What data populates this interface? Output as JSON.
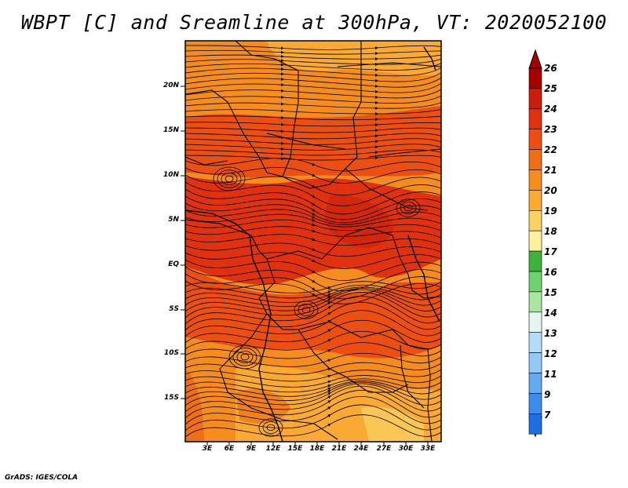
{
  "title": "WBPT [C] and Sreamline at 300hPa, VT: 2020052100",
  "map": {
    "lat_labels": [
      "20N",
      "15N",
      "10N",
      "5N",
      "EQ",
      "5S",
      "10S",
      "15S"
    ],
    "lon_labels": [
      "3E",
      "6E",
      "9E",
      "12E",
      "15E",
      "18E",
      "21E",
      "24E",
      "27E",
      "30E",
      "33E"
    ]
  },
  "colorbar": {
    "labels": [
      "26",
      "25",
      "24",
      "23",
      "22",
      "21",
      "20",
      "19",
      "18",
      "17",
      "16",
      "15",
      "14",
      "13",
      "12",
      "11",
      "9",
      "7"
    ],
    "colors": [
      "#a50000",
      "#c81e0a",
      "#e1320f",
      "#eb5012",
      "#f06e14",
      "#f58c1e",
      "#faaa32",
      "#fad264",
      "#fff0a0",
      "#3cb43c",
      "#6ed26e",
      "#aae6a0",
      "#e6f5f0",
      "#b4dcfa",
      "#96c8f5",
      "#64aaf0",
      "#3c8ceb",
      "#1e6ee1"
    ],
    "arrow_top_color": "#a50000",
    "arrow_bottom_color": "#1e6ee1"
  },
  "credit": "GrADS: IGES/COLA"
}
